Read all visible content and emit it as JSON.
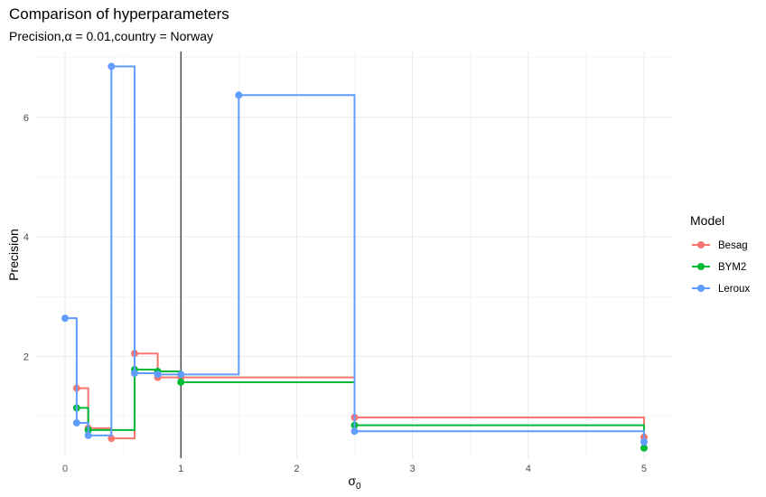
{
  "chart_data": {
    "type": "line",
    "step": true,
    "title": "Comparison of hyperparameters",
    "subtitle": "Precision,α = 0.01,country = Norway",
    "xlabel": "σ",
    "xlabel_subscript": "0",
    "ylabel": "Precision",
    "xlim": [
      -0.25,
      5.25
    ],
    "ylim": [
      0.3,
      7.1
    ],
    "x_ticks": [
      0,
      1,
      2,
      3,
      4,
      5
    ],
    "y_ticks": [
      2,
      4,
      6
    ],
    "x_tick_labels": [
      "0",
      "1",
      "2",
      "3",
      "4",
      "5"
    ],
    "y_tick_labels": [
      "2",
      "4",
      "6"
    ],
    "grid": true,
    "vline_x": 1,
    "legend": {
      "title": "Model",
      "position": "right"
    },
    "x": [
      0,
      0.1,
      0.2,
      0.4,
      0.6,
      0.8,
      1,
      1.5,
      2.5,
      5
    ],
    "series": [
      {
        "name": "Besag",
        "color": "#F8766D",
        "x": [
          0.1,
          0.2,
          0.4,
          0.6,
          0.8,
          1,
          2.5,
          5
        ],
        "values": [
          1.47,
          0.8,
          0.63,
          2.05,
          1.65,
          1.65,
          0.98,
          0.65
        ]
      },
      {
        "name": "BYM2",
        "color": "#00BA38",
        "x": [
          0.1,
          0.2,
          0.6,
          0.8,
          1,
          2.5,
          5
        ],
        "values": [
          1.14,
          0.77,
          1.78,
          1.75,
          1.57,
          0.85,
          0.47
        ]
      },
      {
        "name": "Leroux",
        "color": "#619CFF",
        "x": [
          0,
          0.1,
          0.2,
          0.4,
          0.6,
          0.8,
          1,
          1.5,
          2.5,
          5
        ],
        "values": [
          2.64,
          0.89,
          0.68,
          6.85,
          1.72,
          1.7,
          1.7,
          6.37,
          0.75,
          0.57
        ]
      }
    ]
  }
}
